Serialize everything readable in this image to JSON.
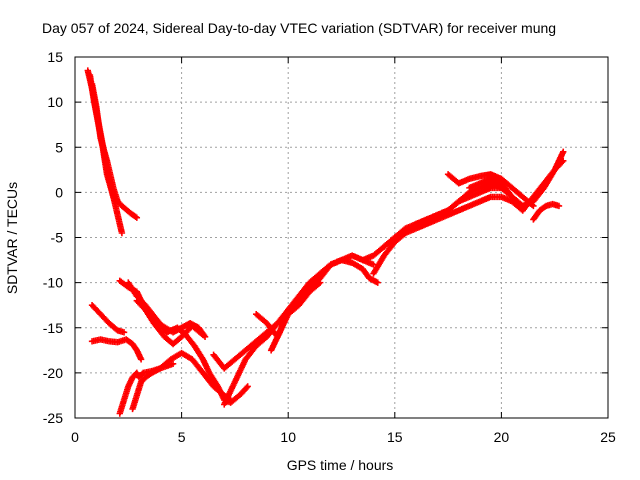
{
  "chart_data": {
    "type": "scatter",
    "title": "Day 057 of 2024, Sidereal Day-to-day VTEC variation (SDTVAR) for receiver mung",
    "xlabel": "GPS time / hours",
    "ylabel": "SDTVAR / TECUs",
    "xlim": [
      0,
      25
    ],
    "ylim": [
      -25,
      15
    ],
    "xticks": [
      0,
      5,
      10,
      15,
      20,
      25
    ],
    "yticks": [
      15,
      10,
      5,
      0,
      -5,
      -10,
      -15,
      -20,
      -25
    ],
    "grid": true,
    "marker": "+",
    "color": "#ff0000",
    "series": [
      {
        "x": [
          0.6,
          0.8,
          1.0,
          1.2,
          1.4,
          1.6,
          1.8,
          2.0,
          2.2
        ],
        "y": [
          13.5,
          11.5,
          9.0,
          6.5,
          4.0,
          1.5,
          -0.5,
          -2.5,
          -4.5
        ]
      },
      {
        "x": [
          0.7,
          0.9,
          1.1,
          1.3,
          1.5,
          1.8,
          2.2,
          2.6,
          2.9
        ],
        "y": [
          13.0,
          10.0,
          7.5,
          5.0,
          2.0,
          -0.5,
          -1.5,
          -2.3,
          -2.8
        ]
      },
      {
        "x": [
          0.8,
          1.0,
          1.2,
          1.5,
          1.8,
          2.0
        ],
        "y": [
          12.0,
          9.5,
          6.0,
          3.5,
          0.5,
          -1.0
        ]
      },
      {
        "x": [
          0.8,
          1.2,
          1.6,
          2.0,
          2.3
        ],
        "y": [
          -12.5,
          -13.5,
          -14.5,
          -15.3,
          -15.5
        ]
      },
      {
        "x": [
          0.8,
          1.2,
          1.6,
          2.0,
          2.4,
          2.7,
          2.9,
          3.1
        ],
        "y": [
          -16.5,
          -16.3,
          -16.5,
          -16.6,
          -16.3,
          -16.8,
          -17.5,
          -18.5
        ]
      },
      {
        "x": [
          2.1,
          2.3,
          2.5,
          2.7,
          2.9,
          3.0,
          3.2,
          3.6,
          4.0,
          4.6
        ],
        "y": [
          -24.5,
          -23.0,
          -21.5,
          -20.5,
          -20.0,
          -20.5,
          -20.0,
          -19.8,
          -19.5,
          -19.0
        ]
      },
      {
        "x": [
          2.7,
          2.9,
          3.1,
          3.3,
          3.6,
          4.0,
          4.5,
          5.0,
          5.5,
          6.0,
          6.5,
          7.0,
          7.3
        ],
        "y": [
          -24.0,
          -22.5,
          -21.0,
          -20.5,
          -20.0,
          -19.5,
          -18.5,
          -17.8,
          -18.5,
          -20.0,
          -21.5,
          -22.5,
          -23.0
        ]
      },
      {
        "x": [
          2.1,
          2.5,
          2.9,
          3.3,
          3.7,
          4.2,
          4.6,
          5.0,
          5.5,
          6.0
        ],
        "y": [
          -9.8,
          -10.5,
          -11.0,
          -13.0,
          -14.5,
          -16.0,
          -16.8,
          -16.0,
          -14.8,
          -15.8
        ]
      },
      {
        "x": [
          2.5,
          2.9,
          3.3,
          3.8,
          4.3,
          4.8,
          5.2,
          5.6,
          6.0,
          6.3,
          6.7,
          7.0,
          7.3,
          7.8,
          8.1
        ],
        "y": [
          -10.0,
          -11.5,
          -12.5,
          -14.0,
          -15.5,
          -15.0,
          -15.8,
          -17.0,
          -18.5,
          -20.0,
          -21.5,
          -23.0,
          -23.3,
          -22.3,
          -21.5
        ]
      },
      {
        "x": [
          2.9,
          3.3,
          3.7,
          4.1,
          4.6,
          5.0,
          5.4,
          5.8,
          6.1
        ],
        "y": [
          -12.0,
          -13.0,
          -14.0,
          -14.8,
          -15.5,
          -15.0,
          -14.5,
          -15.0,
          -16.0
        ]
      },
      {
        "x": [
          6.5,
          7.0,
          7.5,
          8.0,
          8.5,
          9.0,
          9.5,
          10.0,
          10.5,
          11.0,
          11.5
        ],
        "y": [
          -18.0,
          -19.5,
          -18.5,
          -17.5,
          -16.5,
          -15.5,
          -14.5,
          -13.5,
          -12.5,
          -11.0,
          -10.0
        ]
      },
      {
        "x": [
          7.0,
          7.5,
          8.0,
          8.5,
          9.0,
          9.5,
          10.0,
          10.5,
          11.0,
          11.5,
          12.0
        ],
        "y": [
          -23.5,
          -21.0,
          -18.5,
          -17.0,
          -16.0,
          -14.5,
          -13.0,
          -12.0,
          -11.0,
          -9.5,
          -8.0
        ]
      },
      {
        "x": [
          8.5,
          9.0,
          9.5,
          10.0,
          10.5,
          11.0,
          11.5,
          12.0,
          12.5,
          13.0,
          13.5,
          14.0
        ],
        "y": [
          -13.5,
          -14.5,
          -16.0,
          -13.5,
          -12.0,
          -10.5,
          -9.0,
          -8.0,
          -7.5,
          -7.0,
          -7.5,
          -8.0
        ]
      },
      {
        "x": [
          9.2,
          9.6,
          10.0,
          10.5,
          11.0,
          11.5,
          12.0,
          12.5,
          13.0,
          13.5,
          13.8,
          14.2
        ],
        "y": [
          -17.5,
          -15.5,
          -13.0,
          -11.5,
          -10.0,
          -9.0,
          -8.0,
          -7.5,
          -7.8,
          -8.5,
          -9.5,
          -10.0
        ]
      },
      {
        "x": [
          13.5,
          14.0,
          14.5,
          15.0,
          15.5,
          16.0,
          16.5,
          17.0,
          17.5,
          18.0,
          18.5,
          19.0,
          19.5,
          20.0,
          20.5,
          21.0
        ],
        "y": [
          -7.5,
          -7.0,
          -6.0,
          -5.0,
          -4.5,
          -4.0,
          -3.5,
          -3.0,
          -2.5,
          -2.0,
          -1.5,
          -1.0,
          -0.5,
          -0.5,
          -1.0,
          -2.0
        ]
      },
      {
        "x": [
          14.0,
          14.5,
          15.0,
          15.5,
          16.0,
          16.5,
          17.0,
          17.5,
          18.0,
          18.5,
          19.0,
          19.5,
          20.0
        ],
        "y": [
          -9.0,
          -7.0,
          -5.5,
          -4.5,
          -3.5,
          -3.0,
          -2.5,
          -2.0,
          -1.0,
          -0.5,
          0.0,
          0.5,
          0.5
        ]
      },
      {
        "x": [
          14.5,
          15.0,
          15.5,
          16.0,
          16.5,
          17.0,
          17.5,
          18.0,
          18.5,
          19.0,
          19.5,
          20.0,
          20.5,
          21.0
        ],
        "y": [
          -6.0,
          -5.0,
          -4.0,
          -3.5,
          -3.0,
          -2.5,
          -2.0,
          -1.0,
          0.0,
          0.5,
          1.0,
          0.5,
          -0.5,
          -1.5
        ]
      },
      {
        "x": [
          17.5,
          18.0,
          18.5,
          19.0,
          19.5,
          20.0,
          20.5,
          21.0,
          21.5
        ],
        "y": [
          2.0,
          1.0,
          1.5,
          1.8,
          2.0,
          1.5,
          0.5,
          -0.5,
          -1.5
        ]
      },
      {
        "x": [
          18.5,
          19.0,
          19.5,
          20.0,
          20.5,
          21.0,
          21.5,
          22.0,
          22.5,
          22.9
        ],
        "y": [
          0.5,
          1.0,
          1.5,
          1.0,
          -0.5,
          -1.5,
          -1.0,
          0.5,
          2.5,
          4.5
        ]
      },
      {
        "x": [
          21.0,
          21.5,
          22.0,
          22.5,
          22.9
        ],
        "y": [
          -2.0,
          -0.5,
          1.0,
          2.5,
          3.5
        ]
      },
      {
        "x": [
          21.5,
          21.8,
          22.1,
          22.4,
          22.7
        ],
        "y": [
          -3.0,
          -2.0,
          -1.5,
          -1.3,
          -1.5
        ]
      }
    ]
  }
}
